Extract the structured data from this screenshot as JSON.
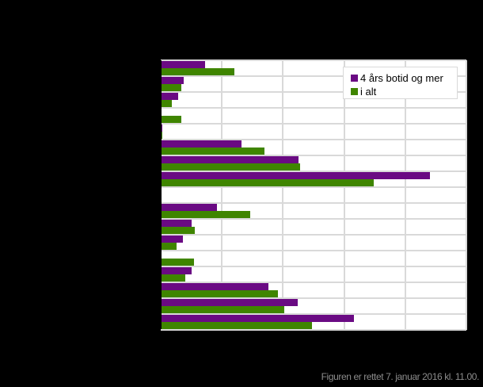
{
  "chart_data": {
    "type": "bar",
    "orientation": "horizontal",
    "title": "",
    "xlabel": "",
    "ylabel": "",
    "xlim": [
      0,
      25
    ],
    "grid": true,
    "gridlines_x": [
      0,
      5,
      10,
      15,
      20,
      25
    ],
    "legend_position": "top-right inside",
    "categories": [
      "",
      "",
      "",
      "",
      "",
      "",
      "",
      "",
      "",
      "",
      "",
      "",
      "",
      "",
      "",
      "",
      ""
    ],
    "series": [
      {
        "name": "4 års botid og mer",
        "color": "#6a0a83",
        "values": [
          3.6,
          1.9,
          1.4,
          0,
          0.1,
          6.6,
          11.3,
          22.0,
          null,
          4.6,
          2.5,
          1.8,
          0,
          2.5,
          8.8,
          11.2,
          15.8
        ]
      },
      {
        "name": "i alt",
        "color": "#3f8500",
        "values": [
          6.0,
          1.7,
          0.9,
          1.7,
          0.1,
          8.5,
          11.4,
          17.4,
          null,
          7.3,
          2.8,
          1.3,
          2.7,
          2.0,
          9.6,
          10.1,
          12.4
        ]
      }
    ],
    "note": "Category labels and axis tick labels are rendered in black on a black background and are not legible."
  },
  "legend": {
    "items": [
      {
        "label": "4 års botid og mer",
        "color": "#6a0a83"
      },
      {
        "label": "i alt",
        "color": "#3f8500"
      }
    ]
  },
  "footer": {
    "text": "Figuren er rettet 7. januar 2016 kl. 11.00."
  },
  "colors": {
    "background": "#000000",
    "plot_background": "#ffffff",
    "grid": "#d9d9d9",
    "footer_text": "#8c8c8c"
  }
}
